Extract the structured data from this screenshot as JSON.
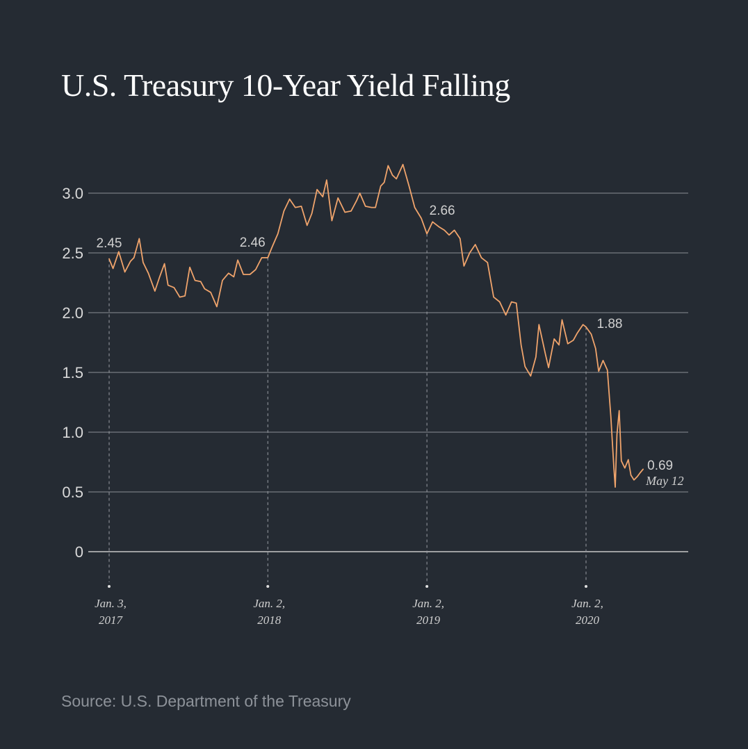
{
  "title": "U.S. Treasury 10-Year Yield Falling",
  "source": "Source: U.S. Department of the Treasury",
  "chart_data": {
    "type": "line",
    "ylim": [
      0,
      3.25
    ],
    "yticks": [
      {
        "value": 0,
        "label": "0"
      },
      {
        "value": 0.5,
        "label": "0.5"
      },
      {
        "value": 1.0,
        "label": "1.0"
      },
      {
        "value": 1.5,
        "label": "1.5"
      },
      {
        "value": 2.0,
        "label": "2.0"
      },
      {
        "value": 2.5,
        "label": "2.5"
      },
      {
        "value": 3.0,
        "label": "3.0"
      }
    ],
    "xlim": [
      "2017-01-03",
      "2020-07-20"
    ],
    "xticks": [
      {
        "date": "2017-01-03",
        "line1": "Jan. 3,",
        "line2": "2017"
      },
      {
        "date": "2018-01-02",
        "line1": "Jan. 2,",
        "line2": "2018"
      },
      {
        "date": "2019-01-02",
        "line1": "Jan. 2,",
        "line2": "2019"
      },
      {
        "date": "2020-01-02",
        "line1": "Jan. 2,",
        "line2": "2020"
      }
    ],
    "annotations": [
      {
        "date": "2017-01-03",
        "value": 2.45,
        "label": "2.45"
      },
      {
        "date": "2018-01-02",
        "value": 2.46,
        "label": "2.46"
      },
      {
        "date": "2019-01-02",
        "value": 2.66,
        "label": "2.66"
      },
      {
        "date": "2020-01-02",
        "value": 1.88,
        "label": "1.88"
      },
      {
        "date": "2020-05-12",
        "value": 0.69,
        "label": "0.69",
        "sublabel": "May 12"
      }
    ],
    "series": [
      {
        "color": "#f0a46c",
        "points": [
          [
            "2017-01-03",
            2.45
          ],
          [
            "2017-01-12",
            2.37
          ],
          [
            "2017-01-25",
            2.51
          ],
          [
            "2017-02-08",
            2.34
          ],
          [
            "2017-02-21",
            2.43
          ],
          [
            "2017-03-01",
            2.46
          ],
          [
            "2017-03-13",
            2.62
          ],
          [
            "2017-03-22",
            2.42
          ],
          [
            "2017-04-03",
            2.33
          ],
          [
            "2017-04-18",
            2.18
          ],
          [
            "2017-04-28",
            2.29
          ],
          [
            "2017-05-10",
            2.41
          ],
          [
            "2017-05-18",
            2.23
          ],
          [
            "2017-06-01",
            2.21
          ],
          [
            "2017-06-14",
            2.13
          ],
          [
            "2017-06-26",
            2.14
          ],
          [
            "2017-07-07",
            2.38
          ],
          [
            "2017-07-19",
            2.27
          ],
          [
            "2017-08-01",
            2.26
          ],
          [
            "2017-08-10",
            2.2
          ],
          [
            "2017-08-24",
            2.17
          ],
          [
            "2017-09-07",
            2.05
          ],
          [
            "2017-09-20",
            2.27
          ],
          [
            "2017-10-04",
            2.33
          ],
          [
            "2017-10-16",
            2.3
          ],
          [
            "2017-10-25",
            2.44
          ],
          [
            "2017-11-07",
            2.32
          ],
          [
            "2017-11-22",
            2.32
          ],
          [
            "2017-12-05",
            2.36
          ],
          [
            "2017-12-19",
            2.46
          ],
          [
            "2018-01-02",
            2.46
          ],
          [
            "2018-01-12",
            2.55
          ],
          [
            "2018-01-25",
            2.66
          ],
          [
            "2018-02-08",
            2.85
          ],
          [
            "2018-02-21",
            2.95
          ],
          [
            "2018-03-06",
            2.88
          ],
          [
            "2018-03-20",
            2.89
          ],
          [
            "2018-04-02",
            2.73
          ],
          [
            "2018-04-13",
            2.83
          ],
          [
            "2018-04-25",
            3.03
          ],
          [
            "2018-05-08",
            2.97
          ],
          [
            "2018-05-17",
            3.11
          ],
          [
            "2018-05-29",
            2.77
          ],
          [
            "2018-06-12",
            2.96
          ],
          [
            "2018-06-28",
            2.84
          ],
          [
            "2018-07-12",
            2.85
          ],
          [
            "2018-07-25",
            2.94
          ],
          [
            "2018-08-01",
            3.0
          ],
          [
            "2018-08-14",
            2.89
          ],
          [
            "2018-08-28",
            2.88
          ],
          [
            "2018-09-06",
            2.88
          ],
          [
            "2018-09-18",
            3.06
          ],
          [
            "2018-09-26",
            3.09
          ],
          [
            "2018-10-05",
            3.23
          ],
          [
            "2018-10-15",
            3.15
          ],
          [
            "2018-10-24",
            3.12
          ],
          [
            "2018-11-08",
            3.24
          ],
          [
            "2018-11-22",
            3.06
          ],
          [
            "2018-12-05",
            2.88
          ],
          [
            "2018-12-20",
            2.79
          ],
          [
            "2019-01-02",
            2.66
          ],
          [
            "2019-01-15",
            2.76
          ],
          [
            "2019-01-29",
            2.72
          ],
          [
            "2019-02-11",
            2.69
          ],
          [
            "2019-02-22",
            2.65
          ],
          [
            "2019-03-06",
            2.69
          ],
          [
            "2019-03-19",
            2.62
          ],
          [
            "2019-03-28",
            2.39
          ],
          [
            "2019-04-10",
            2.5
          ],
          [
            "2019-04-23",
            2.57
          ],
          [
            "2019-05-07",
            2.46
          ],
          [
            "2019-05-21",
            2.42
          ],
          [
            "2019-06-04",
            2.13
          ],
          [
            "2019-06-18",
            2.09
          ],
          [
            "2019-07-02",
            1.98
          ],
          [
            "2019-07-15",
            2.09
          ],
          [
            "2019-07-26",
            2.08
          ],
          [
            "2019-08-06",
            1.73
          ],
          [
            "2019-08-15",
            1.55
          ],
          [
            "2019-08-28",
            1.47
          ],
          [
            "2019-09-09",
            1.63
          ],
          [
            "2019-09-16",
            1.9
          ],
          [
            "2019-10-01",
            1.65
          ],
          [
            "2019-10-08",
            1.54
          ],
          [
            "2019-10-21",
            1.78
          ],
          [
            "2019-11-01",
            1.73
          ],
          [
            "2019-11-08",
            1.94
          ],
          [
            "2019-11-21",
            1.74
          ],
          [
            "2019-12-04",
            1.77
          ],
          [
            "2019-12-13",
            1.83
          ],
          [
            "2019-12-26",
            1.9
          ],
          [
            "2020-01-02",
            1.88
          ],
          [
            "2020-01-14",
            1.82
          ],
          [
            "2020-01-24",
            1.7
          ],
          [
            "2020-01-31",
            1.51
          ],
          [
            "2020-02-10",
            1.6
          ],
          [
            "2020-02-20",
            1.52
          ],
          [
            "2020-02-28",
            1.13
          ],
          [
            "2020-03-06",
            0.7
          ],
          [
            "2020-03-09",
            0.54
          ],
          [
            "2020-03-13",
            0.98
          ],
          [
            "2020-03-18",
            1.18
          ],
          [
            "2020-03-23",
            0.76
          ],
          [
            "2020-03-31",
            0.7
          ],
          [
            "2020-04-08",
            0.77
          ],
          [
            "2020-04-14",
            0.64
          ],
          [
            "2020-04-21",
            0.6
          ],
          [
            "2020-04-29",
            0.63
          ],
          [
            "2020-05-05",
            0.66
          ],
          [
            "2020-05-12",
            0.69
          ]
        ]
      }
    ]
  }
}
